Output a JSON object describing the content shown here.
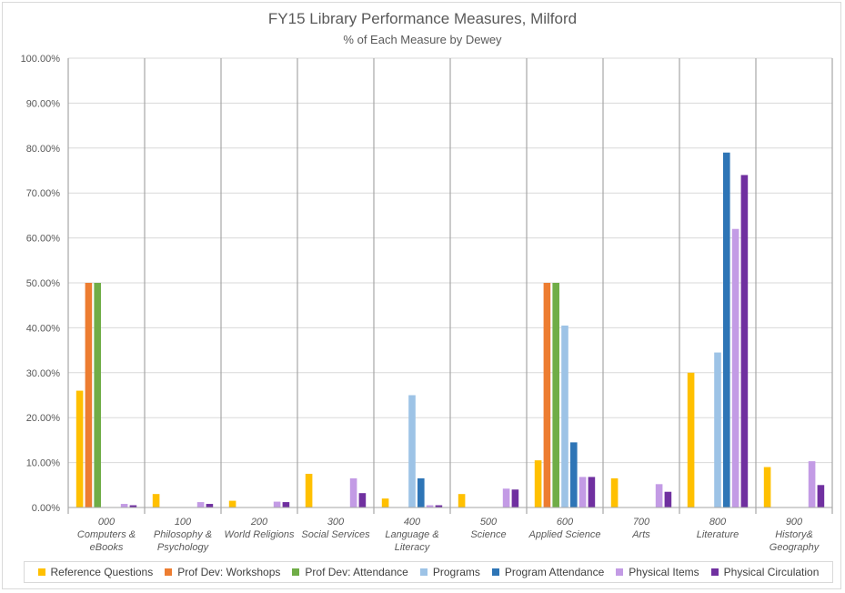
{
  "chart_data": {
    "type": "bar",
    "title": "FY15 Library Performance Measures, Milford",
    "subtitle": "% of Each Measure by Dewey",
    "ylim": [
      0,
      100
    ],
    "yticks": [
      "0.00%",
      "10.00%",
      "20.00%",
      "30.00%",
      "40.00%",
      "50.00%",
      "60.00%",
      "70.00%",
      "80.00%",
      "90.00%",
      "100.00%"
    ],
    "categories": [
      [
        "000",
        "Computers &",
        "eBooks"
      ],
      [
        "100",
        "Philosophy &",
        "Psychology"
      ],
      [
        "200",
        "World Religions"
      ],
      [
        "300",
        "Social Services"
      ],
      [
        "400",
        "Language &",
        "Literacy"
      ],
      [
        "500",
        "Science"
      ],
      [
        "600",
        "Applied Science"
      ],
      [
        "700",
        "Arts"
      ],
      [
        "800",
        "Literature"
      ],
      [
        "900",
        "History&",
        "Geography"
      ]
    ],
    "series": [
      {
        "name": "Reference Questions",
        "color": "#FFC000",
        "values": [
          26.0,
          3.0,
          1.5,
          7.5,
          2.0,
          3.0,
          10.5,
          6.5,
          30.0,
          9.0
        ]
      },
      {
        "name": "Prof Dev: Workshops",
        "color": "#ED7D31",
        "values": [
          50.0,
          0,
          0,
          0,
          0,
          0,
          50.0,
          0,
          0,
          0
        ]
      },
      {
        "name": "Prof Dev: Attendance",
        "color": "#70AD47",
        "values": [
          50.0,
          0,
          0,
          0,
          0,
          0,
          50.0,
          0,
          0,
          0
        ]
      },
      {
        "name": "Programs",
        "color": "#9DC3E6",
        "values": [
          0,
          0,
          0,
          0,
          25.0,
          0,
          40.5,
          0,
          34.5,
          0
        ]
      },
      {
        "name": "Program Attendance",
        "color": "#2E75B6",
        "values": [
          0,
          0,
          0,
          0,
          6.5,
          0,
          14.5,
          0,
          79.0,
          0
        ]
      },
      {
        "name": "Physical Items",
        "color": "#C39BE5",
        "values": [
          0.8,
          1.2,
          1.3,
          6.5,
          0.5,
          4.2,
          6.8,
          5.2,
          62.0,
          10.3
        ]
      },
      {
        "name": "Physical Circulation",
        "color": "#7030A0",
        "values": [
          0.5,
          0.8,
          1.2,
          3.2,
          0.5,
          4.0,
          6.8,
          3.5,
          74.0,
          5.0
        ]
      }
    ]
  }
}
